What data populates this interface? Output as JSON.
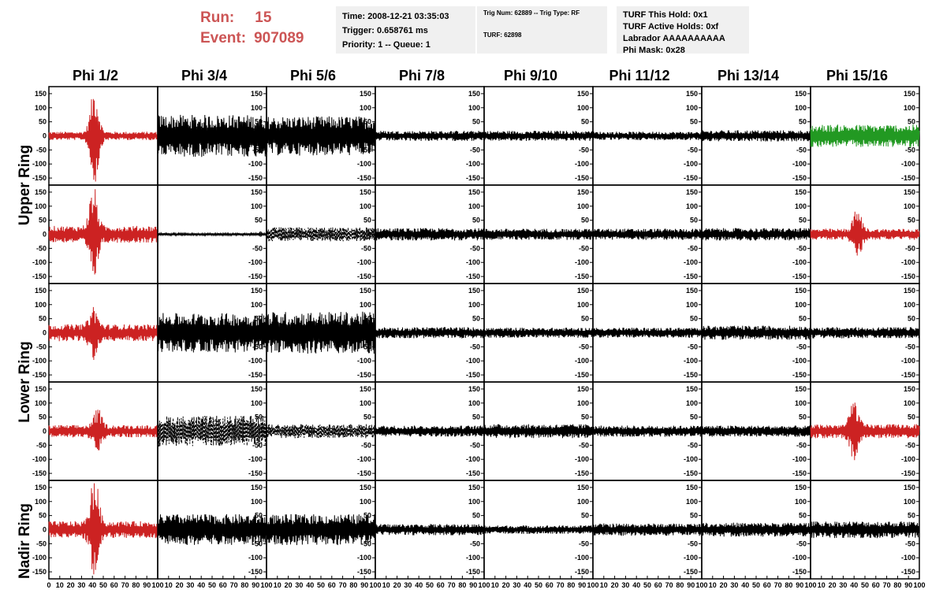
{
  "header": {
    "run_label": "Run:",
    "run_value": "15",
    "event_label": "Event:",
    "event_value": "907089",
    "info_box_1": {
      "time": "Time: 2008-12-21 03:35:03",
      "trigger": "Trigger: 0.658761 ms",
      "priority": "Priority: 1 -- Queue: 1"
    },
    "info_box_2": {
      "trig": "Trig Num: 62889 -- Trig Type: RF",
      "turf": "TURF: 62898"
    },
    "info_box_3": {
      "hold": "TURF This Hold: 0x1",
      "active": "TURF Active Holds: 0xf",
      "labrador": "Labrador AAAAAAAAAA",
      "mask": "Phi Mask: 0x28"
    }
  },
  "chart_data": {
    "type": "line",
    "columns": [
      "Phi 1/2",
      "Phi 3/4",
      "Phi 5/6",
      "Phi 7/8",
      "Phi 9/10",
      "Phi 11/12",
      "Phi 13/14",
      "Phi 15/16"
    ],
    "rows": [
      "Upper Ring",
      "Lower Ring",
      "Nadir Ring"
    ],
    "subplot_rows": 5,
    "xlim": [
      0,
      100
    ],
    "ylim": [
      -175,
      175
    ],
    "y_ticks": [
      -150,
      -100,
      -50,
      0,
      50,
      100,
      150
    ],
    "x_ticks": [
      0,
      10,
      20,
      30,
      40,
      50,
      60,
      70,
      80,
      90,
      100
    ],
    "x_tick_labels": [
      "0",
      "10",
      "20",
      "30",
      "40",
      "50",
      "60",
      "70",
      "80",
      "90",
      "100"
    ],
    "grid": false,
    "colors": {
      "normal": "#000000",
      "triggered": "#cc2222",
      "masked": "#229922"
    },
    "panels": [
      [
        {
          "style": "red",
          "amp": 15,
          "burst": 160,
          "center": 42
        },
        {
          "style": "black",
          "amp": 75
        },
        {
          "style": "black",
          "amp": 70
        },
        {
          "style": "black",
          "amp": 18
        },
        {
          "style": "black",
          "amp": 18
        },
        {
          "style": "black",
          "amp": 15
        },
        {
          "style": "black",
          "amp": 20
        },
        {
          "style": "green",
          "amp": 40
        }
      ],
      [
        {
          "style": "red",
          "amp": 30,
          "burst": 145,
          "center": 41
        },
        {
          "style": "black",
          "amp": 4
        },
        {
          "style": "dashed",
          "amp": 25
        },
        {
          "style": "black",
          "amp": 22
        },
        {
          "style": "black",
          "amp": 20
        },
        {
          "style": "black",
          "amp": 20
        },
        {
          "style": "black",
          "amp": 22
        },
        {
          "style": "red",
          "amp": 20,
          "burst": 75,
          "center": 43
        }
      ],
      [
        {
          "style": "red",
          "amp": 30,
          "burst": 70,
          "center": 41
        },
        {
          "style": "black",
          "amp": 70
        },
        {
          "style": "black",
          "amp": 75
        },
        {
          "style": "black",
          "amp": 20
        },
        {
          "style": "black",
          "amp": 18
        },
        {
          "style": "black",
          "amp": 18
        },
        {
          "style": "black",
          "amp": 25
        },
        {
          "style": "black",
          "amp": 20
        }
      ],
      [
        {
          "style": "red",
          "amp": 22,
          "burst": 60,
          "center": 45
        },
        {
          "style": "dashed",
          "amp": 55
        },
        {
          "style": "dashed",
          "amp": 25
        },
        {
          "style": "black",
          "amp": 20
        },
        {
          "style": "black",
          "amp": 25
        },
        {
          "style": "black",
          "amp": 20
        },
        {
          "style": "black",
          "amp": 20
        },
        {
          "style": "red",
          "amp": 25,
          "burst": 95,
          "center": 40
        }
      ],
      [
        {
          "style": "red",
          "amp": 30,
          "burst": 170,
          "center": 42
        },
        {
          "style": "black",
          "amp": 55
        },
        {
          "style": "black",
          "amp": 55
        },
        {
          "style": "black",
          "amp": 20
        },
        {
          "style": "black",
          "amp": 15
        },
        {
          "style": "black",
          "amp": 22
        },
        {
          "style": "black",
          "amp": 25
        },
        {
          "style": "black",
          "amp": 30
        }
      ]
    ]
  }
}
